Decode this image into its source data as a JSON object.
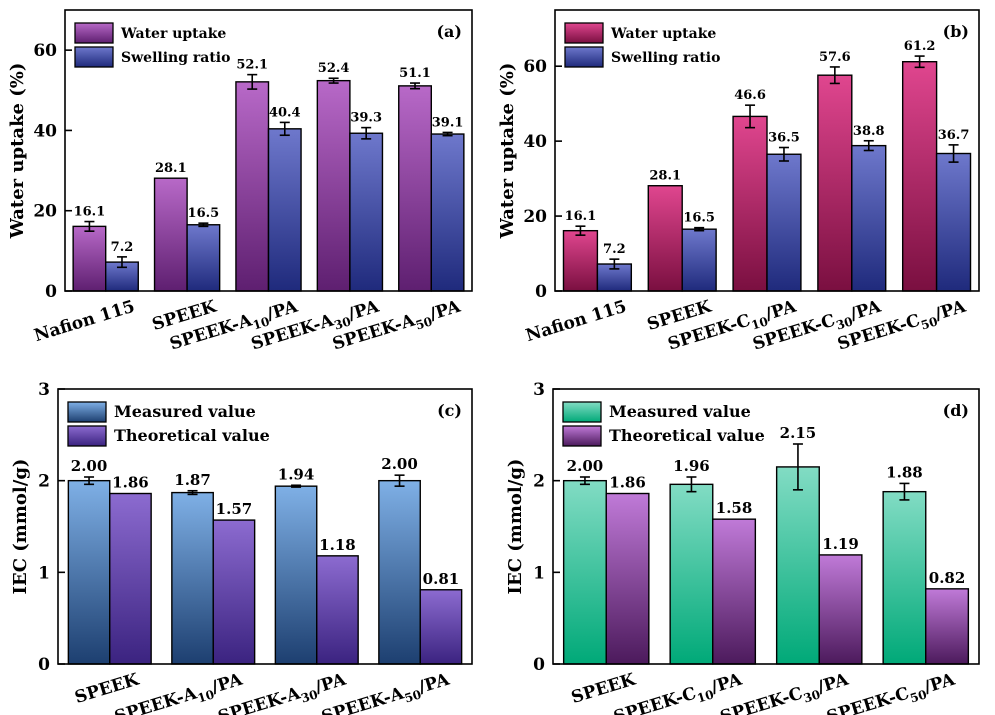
{
  "chart_data": [
    {
      "panel": "(a)",
      "type": "bar",
      "ylabel": "Water uptake (%)",
      "ylim": [
        0,
        70
      ],
      "yticks": [
        0,
        20,
        40,
        60
      ],
      "legend_position": "top-left",
      "categories": [
        {
          "base": "Nafion 115",
          "sub": "",
          "tail": ""
        },
        {
          "base": "SPEEK",
          "sub": "",
          "tail": ""
        },
        {
          "base": "SPEEK-A",
          "sub": "10",
          "tail": "/PA"
        },
        {
          "base": "SPEEK-A",
          "sub": "30",
          "tail": "/PA"
        },
        {
          "base": "SPEEK-A",
          "sub": "50",
          "tail": "/PA"
        }
      ],
      "series": [
        {
          "name": "Water uptake",
          "color_top": "#b869c8",
          "color_bottom": "#5e1f70",
          "values": [
            16.1,
            28.1,
            52.1,
            52.4,
            51.1
          ],
          "errors": [
            1.2,
            0,
            1.8,
            0.6,
            0.7
          ],
          "labels": [
            "16.1",
            "28.1",
            "52.1",
            "52.4",
            "51.1"
          ]
        },
        {
          "name": "Swelling ratio",
          "color_top": "#6e78cc",
          "color_bottom": "#1f2a7c",
          "values": [
            7.2,
            16.5,
            40.4,
            39.3,
            39.1
          ],
          "errors": [
            1.3,
            0.4,
            1.6,
            1.4,
            0.4
          ],
          "labels": [
            "7.2",
            "16.5",
            "40.4",
            "39.3",
            "39.1"
          ]
        }
      ]
    },
    {
      "panel": "(b)",
      "type": "bar",
      "ylabel": "Water uptake (%)",
      "ylim": [
        0,
        75
      ],
      "yticks": [
        0,
        20,
        40,
        60
      ],
      "legend_position": "top-left",
      "categories": [
        {
          "base": "Nafion 115",
          "sub": "",
          "tail": ""
        },
        {
          "base": "SPEEK",
          "sub": "",
          "tail": ""
        },
        {
          "base": "SPEEK-C",
          "sub": "10",
          "tail": "/PA"
        },
        {
          "base": "SPEEK-C",
          "sub": "30",
          "tail": "/PA"
        },
        {
          "base": "SPEEK-C",
          "sub": "50",
          "tail": "/PA"
        }
      ],
      "series": [
        {
          "name": "Water uptake",
          "color_top": "#e0468f",
          "color_bottom": "#7a0f40",
          "values": [
            16.1,
            28.1,
            46.6,
            57.6,
            61.2
          ],
          "errors": [
            1.2,
            0,
            3.0,
            2.2,
            1.5
          ],
          "labels": [
            "16.1",
            "28.1",
            "46.6",
            "57.6",
            "61.2"
          ]
        },
        {
          "name": "Swelling ratio",
          "color_top": "#6e78cc",
          "color_bottom": "#1f2a7c",
          "values": [
            7.2,
            16.5,
            36.5,
            38.8,
            36.7
          ],
          "errors": [
            1.3,
            0.4,
            1.8,
            1.3,
            2.3
          ],
          "labels": [
            "7.2",
            "16.5",
            "36.5",
            "38.8",
            "36.7"
          ]
        }
      ]
    },
    {
      "panel": "(c)",
      "type": "bar",
      "ylabel": "IEC (mmol/g)",
      "ylim": [
        0,
        3
      ],
      "yticks": [
        0,
        1,
        2,
        3
      ],
      "legend_position": "top-left",
      "categories": [
        {
          "base": "SPEEK",
          "sub": "",
          "tail": ""
        },
        {
          "base": "SPEEK-A",
          "sub": "10",
          "tail": "/PA"
        },
        {
          "base": "SPEEK-A",
          "sub": "30",
          "tail": "/PA"
        },
        {
          "base": "SPEEK-A",
          "sub": "50",
          "tail": "/PA"
        }
      ],
      "series": [
        {
          "name": "Measured value",
          "color_top": "#7fb0e6",
          "color_bottom": "#1d3f70",
          "values": [
            2.0,
            1.87,
            1.94,
            2.0
          ],
          "errors": [
            0.04,
            0.02,
            0.01,
            0.06
          ],
          "labels": [
            "2.00",
            "1.87",
            "1.94",
            "2.00"
          ]
        },
        {
          "name": "Theoretical value",
          "color_top": "#8c6bd0",
          "color_bottom": "#3b2380",
          "values": [
            1.86,
            1.57,
            1.18,
            0.81
          ],
          "errors": [
            0,
            0,
            0,
            0
          ],
          "labels": [
            "1.86",
            "1.57",
            "1.18",
            "0.81"
          ]
        }
      ]
    },
    {
      "panel": "(d)",
      "type": "bar",
      "ylabel": "IEC (mmol/g)",
      "ylim": [
        0,
        3
      ],
      "yticks": [
        0,
        1,
        2,
        3
      ],
      "legend_position": "top-left",
      "categories": [
        {
          "base": "SPEEK",
          "sub": "",
          "tail": ""
        },
        {
          "base": "SPEEK-C",
          "sub": "10",
          "tail": "/PA"
        },
        {
          "base": "SPEEK-C",
          "sub": "30",
          "tail": "/PA"
        },
        {
          "base": "SPEEK-C",
          "sub": "50",
          "tail": "/PA"
        }
      ],
      "series": [
        {
          "name": "Measured value",
          "color_top": "#82dcc4",
          "color_bottom": "#00a978",
          "values": [
            2.0,
            1.96,
            2.15,
            1.88
          ],
          "errors": [
            0.04,
            0.08,
            0.25,
            0.09
          ],
          "labels": [
            "2.00",
            "1.96",
            "2.15",
            "1.88"
          ]
        },
        {
          "name": "Theoretical value",
          "color_top": "#c07ad8",
          "color_bottom": "#4c1a5c",
          "values": [
            1.86,
            1.58,
            1.19,
            0.82
          ],
          "errors": [
            0,
            0,
            0,
            0
          ],
          "labels": [
            "1.86",
            "1.58",
            "1.19",
            "0.82"
          ]
        }
      ]
    }
  ]
}
